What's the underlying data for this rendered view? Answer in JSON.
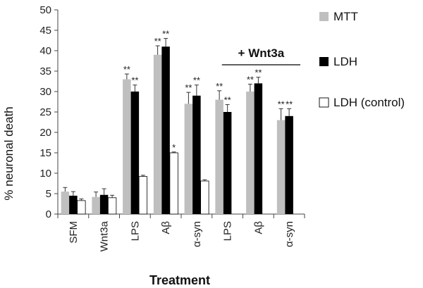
{
  "chart_data": {
    "type": "bar",
    "xlabel": "Treatment",
    "ylabel": "% neuronal death",
    "ylim": [
      0,
      50
    ],
    "yticks": [
      0,
      5,
      10,
      15,
      20,
      25,
      30,
      35,
      40,
      45,
      50
    ],
    "grid": false,
    "legend_position": "right",
    "categories": [
      "SFM",
      "Wnt3a",
      "LPS",
      "Aβ",
      "α-syn",
      "LPS",
      "Aβ",
      "α-syn"
    ],
    "group_annotation": {
      "label": "+ Wnt3a",
      "category_indices": [
        5,
        6,
        7
      ]
    },
    "series": [
      {
        "name": "MTT",
        "color": "#bfbfbf",
        "values": [
          5.5,
          4.2,
          33,
          39,
          27,
          28,
          30,
          23
        ],
        "errors": [
          1.0,
          1.2,
          1.3,
          2.2,
          2.8,
          2.2,
          1.8,
          2.8
        ],
        "significance": [
          "",
          "",
          "**",
          "**",
          "**",
          "**",
          "**",
          "**"
        ]
      },
      {
        "name": "LDH",
        "color": "#000000",
        "values": [
          4.5,
          4.7,
          30,
          41,
          29,
          25,
          32,
          24
        ],
        "errors": [
          1.0,
          1.5,
          1.6,
          2.0,
          2.6,
          1.8,
          1.5,
          1.8
        ],
        "significance": [
          "",
          "",
          "**",
          "**",
          "**",
          "**",
          "**",
          "**"
        ]
      },
      {
        "name": "LDH (control)",
        "color": "#ffffff",
        "values": [
          3.3,
          4.0,
          9.2,
          15,
          8.1,
          null,
          null,
          null
        ],
        "errors": [
          0.4,
          0.6,
          0.3,
          0.2,
          0.3,
          null,
          null,
          null
        ],
        "significance": [
          "",
          "",
          "",
          "*",
          "",
          "",
          "",
          ""
        ]
      }
    ]
  }
}
